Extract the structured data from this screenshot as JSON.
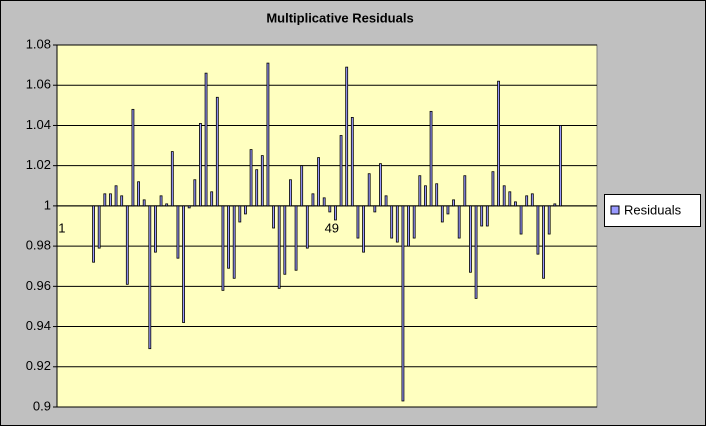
{
  "chart_data": {
    "type": "bar",
    "title": "Multiplicative Residuals",
    "categories": [
      "1",
      null,
      null,
      null,
      null,
      null,
      null,
      null,
      null,
      null,
      null,
      null,
      null,
      null,
      null,
      null,
      null,
      null,
      null,
      null,
      null,
      null,
      null,
      null,
      null,
      null,
      null,
      null,
      null,
      null,
      null,
      null,
      null,
      null,
      null,
      null,
      null,
      null,
      null,
      null,
      null,
      null,
      null,
      null,
      null,
      null,
      null,
      null,
      "49",
      null,
      null,
      null,
      null,
      null,
      null,
      null,
      null,
      null,
      null,
      null,
      null,
      null,
      null,
      null,
      null,
      null,
      null,
      null,
      null,
      null,
      null,
      null,
      null,
      null,
      null,
      null,
      null,
      null,
      null,
      null,
      null,
      null,
      null,
      null,
      null,
      null,
      null,
      null,
      null,
      null,
      null,
      null,
      null,
      null,
      null,
      null
    ],
    "series": [
      {
        "name": "Residuals",
        "color": "#9999ff",
        "values": [
          null,
          null,
          null,
          null,
          null,
          null,
          0.972,
          0.979,
          1.006,
          1.006,
          1.01,
          1.005,
          0.961,
          1.048,
          1.012,
          1.003,
          0.929,
          0.977,
          1.005,
          1.001,
          1.027,
          0.974,
          0.942,
          0.999,
          1.013,
          1.041,
          1.066,
          1.007,
          1.054,
          0.958,
          0.969,
          0.964,
          0.992,
          0.996,
          1.028,
          1.018,
          1.025,
          1.071,
          0.989,
          0.959,
          0.966,
          1.013,
          0.968,
          1.02,
          0.979,
          1.006,
          1.024,
          1.004,
          0.997,
          0.993,
          1.035,
          1.069,
          1.044,
          0.984,
          0.977,
          1.016,
          0.997,
          1.021,
          1.005,
          0.984,
          0.982,
          0.903,
          0.98,
          0.984,
          1.015,
          1.01,
          1.047,
          1.011,
          0.992,
          0.996,
          1.003,
          0.984,
          1.015,
          0.967,
          0.954,
          0.99,
          0.99,
          1.017,
          1.062,
          1.01,
          1.007,
          1.002,
          0.986,
          1.005,
          1.006,
          0.976,
          0.964,
          0.986,
          1.001,
          1.04,
          null,
          null,
          null,
          null,
          null,
          null
        ]
      }
    ],
    "ylim": [
      0.9,
      1.08
    ],
    "yticks": [
      0.9,
      0.92,
      0.94,
      0.96,
      0.98,
      1,
      1.02,
      1.04,
      1.06,
      1.08
    ],
    "baseline": 1,
    "grid": true,
    "legend": "right"
  }
}
